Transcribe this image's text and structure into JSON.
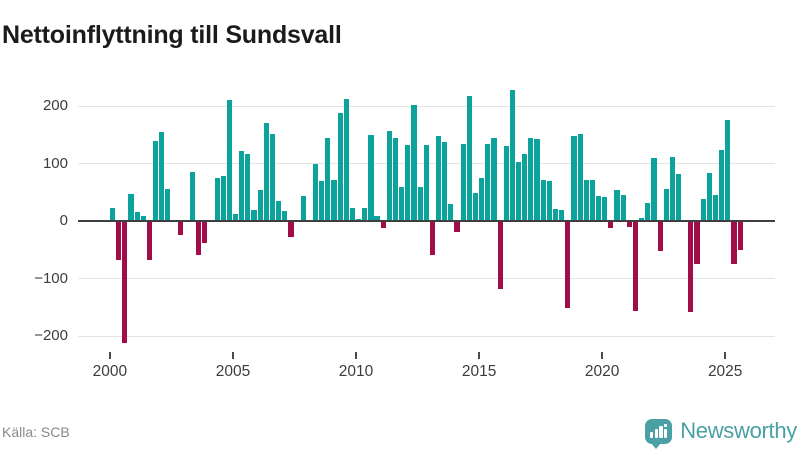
{
  "title": "Nettoinflyttning till Sundsvall",
  "footer": {
    "source": "Källa: SCB",
    "brand_name": "Newsworthy"
  },
  "colors": {
    "positive_bar": "#0ba39c",
    "negative_bar": "#a00d49",
    "gridline": "#e4e4e4",
    "zero_axis": "#3f3f3f",
    "axis_text": "#3d3d3d",
    "source_text": "#8a8a8a",
    "brand_teal": "#4aa0a4"
  },
  "chart_data": {
    "type": "bar",
    "title": "Nettoinflyttning till Sundsvall",
    "xlabel": "",
    "ylabel": "",
    "frequency": "quarterly",
    "start_period": "2000Q1",
    "end_period": "2025Q3",
    "ylim": [
      -230,
      245
    ],
    "grid": "horizontal",
    "legend": "none",
    "yticks": [
      {
        "value": 200,
        "label": "200"
      },
      {
        "value": 100,
        "label": "100"
      },
      {
        "value": 0,
        "label": "0"
      },
      {
        "value": -100,
        "label": "−100"
      },
      {
        "value": -200,
        "label": "−200"
      }
    ],
    "xticks": [
      {
        "year": 2000,
        "label": "2000"
      },
      {
        "year": 2005,
        "label": "2005"
      },
      {
        "year": 2010,
        "label": "2010"
      },
      {
        "year": 2015,
        "label": "2015"
      },
      {
        "year": 2020,
        "label": "2020"
      },
      {
        "year": 2025,
        "label": "2025"
      }
    ],
    "values": [
      23,
      -65,
      -210,
      47,
      16,
      9,
      -65,
      140,
      154,
      56,
      0,
      -23,
      0,
      85,
      -57,
      -37,
      0,
      74,
      78,
      210,
      13,
      122,
      116,
      19,
      54,
      171,
      151,
      35,
      17,
      -26,
      2,
      43,
      0,
      99,
      69,
      144,
      71,
      188,
      213,
      23,
      4,
      22,
      149,
      9,
      -10,
      156,
      145,
      60,
      132,
      201,
      59,
      132,
      -57,
      148,
      138,
      29,
      -17,
      134,
      217,
      48,
      74,
      134,
      144,
      -116,
      130,
      228,
      103,
      117,
      145,
      143,
      71,
      70,
      21,
      20,
      -150,
      147,
      152,
      71,
      72,
      43,
      42,
      -10,
      54,
      46,
      -8,
      -155,
      6,
      32,
      110,
      -50,
      56,
      111,
      81,
      0,
      -156,
      -73,
      38,
      84,
      45,
      124,
      175,
      -72,
      -48
    ]
  }
}
